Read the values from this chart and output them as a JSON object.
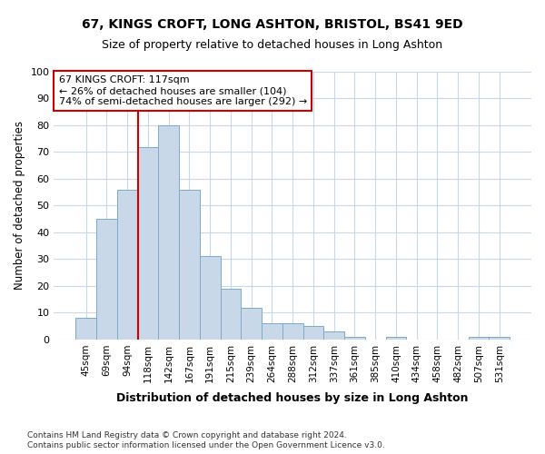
{
  "title1": "67, KINGS CROFT, LONG ASHTON, BRISTOL, BS41 9ED",
  "title2": "Size of property relative to detached houses in Long Ashton",
  "xlabel": "Distribution of detached houses by size in Long Ashton",
  "ylabel": "Number of detached properties",
  "footnote1": "Contains HM Land Registry data © Crown copyright and database right 2024.",
  "footnote2": "Contains public sector information licensed under the Open Government Licence v3.0.",
  "bar_labels": [
    "45sqm",
    "69sqm",
    "94sqm",
    "118sqm",
    "142sqm",
    "167sqm",
    "191sqm",
    "215sqm",
    "239sqm",
    "264sqm",
    "288sqm",
    "312sqm",
    "337sqm",
    "361sqm",
    "385sqm",
    "410sqm",
    "434sqm",
    "458sqm",
    "482sqm",
    "507sqm",
    "531sqm"
  ],
  "bar_values": [
    8,
    45,
    56,
    72,
    80,
    56,
    31,
    19,
    12,
    6,
    6,
    5,
    3,
    1,
    0,
    1,
    0,
    0,
    0,
    1,
    1
  ],
  "bar_color": "#c8d8e8",
  "bar_edge_color": "#7aaaca",
  "grid_color": "#c8d8ea",
  "annotation_text": "67 KINGS CROFT: 117sqm\n← 26% of detached houses are smaller (104)\n74% of semi-detached houses are larger (292) →",
  "annotation_box_color": "#ffffff",
  "annotation_box_edge": "#cc0000",
  "vline_color": "#cc0000",
  "vline_x": 2.5,
  "ylim": [
    0,
    100
  ],
  "yticks": [
    0,
    10,
    20,
    30,
    40,
    50,
    60,
    70,
    80,
    90,
    100
  ],
  "fig_bg": "#ffffff",
  "plot_bg": "#ffffff"
}
